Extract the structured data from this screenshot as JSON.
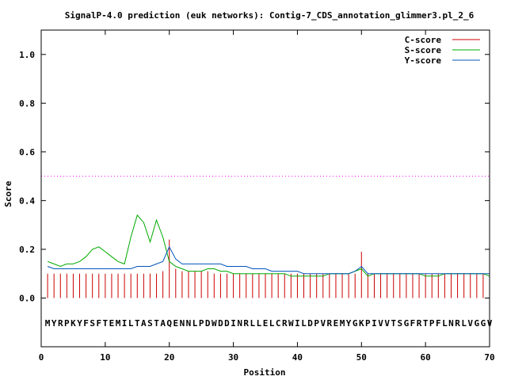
{
  "chart_data": {
    "type": "line",
    "title": "SignalP-4.0 prediction (euk networks): Contig-7_CDS_annotation_glimmer3.pl_2_6",
    "xlabel": "Position",
    "ylabel": "Score",
    "xlim": [
      0,
      70
    ],
    "ylim": [
      -0.2,
      1.1
    ],
    "x_ticks": [
      "0",
      "10",
      "20",
      "30",
      "40",
      "50",
      "60",
      "70"
    ],
    "y_ticks": [
      "0.0",
      "0.2",
      "0.4",
      "0.6",
      "0.8",
      "1.0"
    ],
    "x_tick_values": [
      0,
      10,
      20,
      30,
      40,
      50,
      60,
      70
    ],
    "y_tick_values": [
      0.0,
      0.2,
      0.4,
      0.6,
      0.8,
      1.0
    ],
    "threshold": 0.5,
    "threshold_color": "#ff00ff",
    "legend_position": "top-right",
    "sequence": "MYRPKYFSFTEMILTASTAQENNLPDWDDINRLLELCRWILDPVREMYGKPIVVTSGFRTPFLNRLVGGV",
    "series": [
      {
        "name": "C-score",
        "color": "#cc0000",
        "style": "impulse",
        "values": [
          0.1,
          0.1,
          0.1,
          0.1,
          0.1,
          0.1,
          0.1,
          0.1,
          0.1,
          0.1,
          0.1,
          0.1,
          0.1,
          0.1,
          0.1,
          0.1,
          0.1,
          0.1,
          0.11,
          0.24,
          0.12,
          0.11,
          0.11,
          0.11,
          0.11,
          0.11,
          0.1,
          0.1,
          0.1,
          0.1,
          0.1,
          0.1,
          0.1,
          0.1,
          0.1,
          0.1,
          0.1,
          0.1,
          0.1,
          0.1,
          0.1,
          0.1,
          0.1,
          0.1,
          0.1,
          0.1,
          0.1,
          0.1,
          0.1,
          0.19,
          0.1,
          0.1,
          0.1,
          0.1,
          0.1,
          0.1,
          0.1,
          0.1,
          0.1,
          0.1,
          0.1,
          0.1,
          0.1,
          0.1,
          0.1,
          0.1,
          0.1,
          0.1,
          0.1,
          0.1
        ]
      },
      {
        "name": "S-score",
        "color": "#00aa00",
        "style": "line",
        "values": [
          0.15,
          0.14,
          0.13,
          0.14,
          0.14,
          0.15,
          0.17,
          0.2,
          0.21,
          0.19,
          0.17,
          0.15,
          0.14,
          0.25,
          0.34,
          0.31,
          0.23,
          0.32,
          0.25,
          0.15,
          0.13,
          0.12,
          0.11,
          0.11,
          0.11,
          0.12,
          0.12,
          0.11,
          0.11,
          0.1,
          0.1,
          0.1,
          0.1,
          0.1,
          0.1,
          0.1,
          0.1,
          0.1,
          0.09,
          0.09,
          0.09,
          0.09,
          0.09,
          0.09,
          0.1,
          0.1,
          0.1,
          0.1,
          0.11,
          0.12,
          0.09,
          0.1,
          0.1,
          0.1,
          0.1,
          0.1,
          0.1,
          0.1,
          0.1,
          0.09,
          0.09,
          0.09,
          0.1,
          0.1,
          0.1,
          0.1,
          0.1,
          0.1,
          0.1,
          0.09
        ]
      },
      {
        "name": "Y-score",
        "color": "#0055bb",
        "style": "line",
        "values": [
          0.13,
          0.12,
          0.12,
          0.12,
          0.12,
          0.12,
          0.12,
          0.12,
          0.12,
          0.12,
          0.12,
          0.12,
          0.12,
          0.12,
          0.13,
          0.13,
          0.13,
          0.14,
          0.15,
          0.21,
          0.16,
          0.14,
          0.14,
          0.14,
          0.14,
          0.14,
          0.14,
          0.14,
          0.13,
          0.13,
          0.13,
          0.13,
          0.12,
          0.12,
          0.12,
          0.11,
          0.11,
          0.11,
          0.11,
          0.11,
          0.1,
          0.1,
          0.1,
          0.1,
          0.1,
          0.1,
          0.1,
          0.1,
          0.11,
          0.13,
          0.1,
          0.1,
          0.1,
          0.1,
          0.1,
          0.1,
          0.1,
          0.1,
          0.1,
          0.1,
          0.1,
          0.1,
          0.1,
          0.1,
          0.1,
          0.1,
          0.1,
          0.1,
          0.1,
          0.1
        ]
      }
    ]
  }
}
